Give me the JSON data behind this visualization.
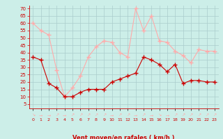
{
  "hours": [
    0,
    1,
    2,
    3,
    4,
    5,
    6,
    7,
    8,
    9,
    10,
    11,
    12,
    13,
    14,
    15,
    16,
    17,
    18,
    19,
    20,
    21,
    22,
    23
  ],
  "wind_avg": [
    37,
    35,
    19,
    16,
    10,
    10,
    13,
    15,
    15,
    15,
    20,
    22,
    24,
    26,
    37,
    35,
    32,
    27,
    32,
    19,
    21,
    21,
    20,
    20
  ],
  "wind_gust": [
    60,
    55,
    52,
    28,
    10,
    16,
    24,
    37,
    44,
    48,
    47,
    40,
    37,
    70,
    55,
    65,
    48,
    47,
    41,
    38,
    33,
    42,
    41,
    41
  ],
  "bg_color": "#cceee8",
  "grid_color": "#aacccc",
  "line_avg_color": "#cc0000",
  "line_gust_color": "#ffaaaa",
  "axis_color": "#cc0000",
  "xlabel": "Vent moyen/en rafales ( km/h )",
  "yticks": [
    5,
    10,
    15,
    20,
    25,
    30,
    35,
    40,
    45,
    50,
    55,
    60,
    65,
    70
  ],
  "ylim": [
    2,
    72
  ],
  "xlim": [
    -0.5,
    23.5
  ],
  "arrows": [
    "↘",
    "→",
    "→",
    "↗",
    "→",
    "↗",
    "↗",
    "↗",
    "↗",
    "↗",
    "→",
    "↗",
    "↗",
    "→",
    "↗",
    "→",
    "↘",
    "→",
    "↗",
    "↗",
    "↗",
    "↗",
    "↗",
    "↗"
  ]
}
